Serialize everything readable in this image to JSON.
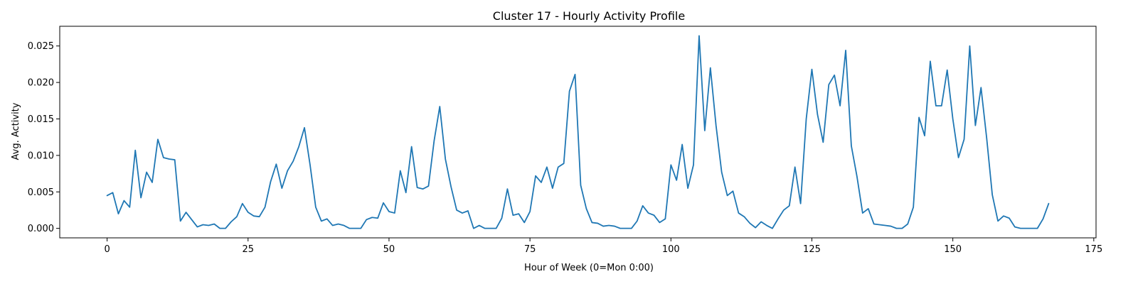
{
  "chart_data": {
    "type": "line",
    "title": "Cluster 17 - Hourly Activity Profile",
    "xlabel": "Hour of Week (0=Mon 0:00)",
    "ylabel": "Avg. Activity",
    "xlim": [
      -8.4,
      175.4
    ],
    "ylim": [
      -0.0013,
      0.0277
    ],
    "xticks": [
      0,
      25,
      50,
      75,
      100,
      125,
      150,
      175
    ],
    "yticks": [
      0.0,
      0.005,
      0.01,
      0.015,
      0.02,
      0.025
    ],
    "ytick_labels": [
      "0.000",
      "0.005",
      "0.010",
      "0.015",
      "0.020",
      "0.025"
    ],
    "grid": false,
    "series": [
      {
        "color": "#1f77b4",
        "x": [
          0,
          1,
          2,
          3,
          4,
          5,
          6,
          7,
          8,
          9,
          10,
          11,
          12,
          13,
          14,
          15,
          16,
          17,
          18,
          19,
          20,
          21,
          22,
          23,
          24,
          25,
          26,
          27,
          28,
          29,
          30,
          31,
          32,
          33,
          34,
          35,
          36,
          37,
          38,
          39,
          40,
          41,
          42,
          43,
          44,
          45,
          46,
          47,
          48,
          49,
          50,
          51,
          52,
          53,
          54,
          55,
          56,
          57,
          58,
          59,
          60,
          61,
          62,
          63,
          64,
          65,
          66,
          67,
          68,
          69,
          70,
          71,
          72,
          73,
          74,
          75,
          76,
          77,
          78,
          79,
          80,
          81,
          82,
          83,
          84,
          85,
          86,
          87,
          88,
          89,
          90,
          91,
          92,
          93,
          94,
          95,
          96,
          97,
          98,
          99,
          100,
          101,
          102,
          103,
          104,
          105,
          106,
          107,
          108,
          109,
          110,
          111,
          112,
          113,
          114,
          115,
          116,
          117,
          118,
          119,
          120,
          121,
          122,
          123,
          124,
          125,
          126,
          127,
          128,
          129,
          130,
          131,
          132,
          133,
          134,
          135,
          136,
          137,
          138,
          139,
          140,
          141,
          142,
          143,
          144,
          145,
          146,
          147,
          148,
          149,
          150,
          151,
          152,
          153,
          154,
          155,
          156,
          157,
          158,
          159,
          160,
          161,
          162,
          163,
          164,
          165,
          166,
          167
        ],
        "values": [
          0.0045,
          0.0049,
          0.002,
          0.0038,
          0.0029,
          0.0107,
          0.0042,
          0.0077,
          0.0063,
          0.0122,
          0.0097,
          0.0095,
          0.0094,
          0.001,
          0.0022,
          0.0012,
          0.0002,
          0.0005,
          0.0004,
          0.0006,
          0.0,
          0.0,
          0.0009,
          0.0016,
          0.0034,
          0.0022,
          0.0017,
          0.0016,
          0.0029,
          0.0064,
          0.0088,
          0.0055,
          0.0079,
          0.0092,
          0.0112,
          0.0138,
          0.0087,
          0.0029,
          0.001,
          0.0013,
          0.0004,
          0.0006,
          0.0004,
          0.0,
          0.0,
          0.0,
          0.0012,
          0.0015,
          0.0014,
          0.0035,
          0.0023,
          0.0021,
          0.0079,
          0.0049,
          0.0112,
          0.0056,
          0.0054,
          0.0058,
          0.012,
          0.0167,
          0.0095,
          0.0057,
          0.0025,
          0.0021,
          0.0024,
          0.0,
          0.0004,
          0.0,
          0.0,
          0.0,
          0.0014,
          0.0054,
          0.0018,
          0.002,
          0.0008,
          0.0023,
          0.0072,
          0.0063,
          0.0084,
          0.0055,
          0.0084,
          0.0089,
          0.0188,
          0.0211,
          0.0059,
          0.0027,
          0.0008,
          0.0007,
          0.0003,
          0.0004,
          0.0003,
          0.0,
          0.0,
          0.0,
          0.001,
          0.0031,
          0.0021,
          0.0018,
          0.0008,
          0.0013,
          0.0087,
          0.0066,
          0.0115,
          0.0055,
          0.0087,
          0.0264,
          0.0134,
          0.022,
          0.0141,
          0.0077,
          0.0045,
          0.0051,
          0.0021,
          0.0016,
          0.0007,
          0.0001,
          0.0009,
          0.0004,
          0.0,
          0.0013,
          0.0025,
          0.0031,
          0.0084,
          0.0034,
          0.015,
          0.0218,
          0.0156,
          0.0118,
          0.0197,
          0.021,
          0.0168,
          0.0244,
          0.0113,
          0.0071,
          0.0021,
          0.0027,
          0.0006,
          0.0005,
          0.0004,
          0.0003,
          0.0,
          0.0,
          0.0006,
          0.0029,
          0.0152,
          0.0127,
          0.0229,
          0.0168,
          0.0168,
          0.0217,
          0.015,
          0.0097,
          0.0122,
          0.025,
          0.0141,
          0.0193,
          0.0124,
          0.0046,
          0.001,
          0.0017,
          0.0014,
          0.0002,
          0.0,
          0.0,
          0.0,
          0.0,
          0.0013,
          0.0034
        ]
      }
    ]
  }
}
